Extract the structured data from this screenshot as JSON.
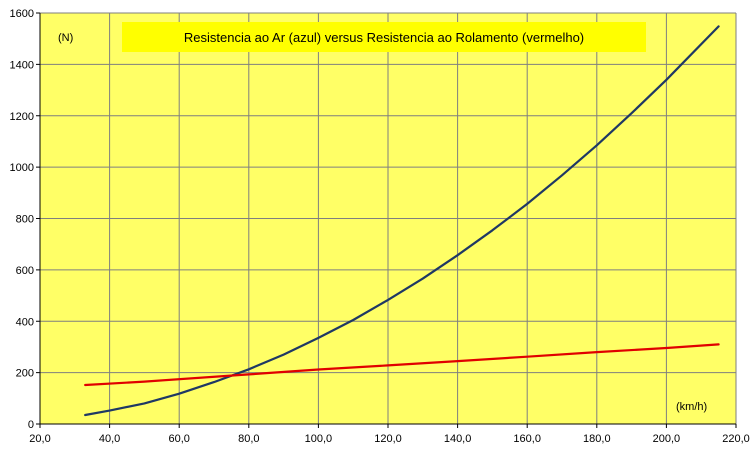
{
  "chart_data": {
    "type": "line",
    "title": "Resistencia ao Ar (azul)  versus  Resistencia ao Rolamento (vermelho)",
    "ylabel": "(N)",
    "xlabel": "(km/h)",
    "xlim": [
      20,
      220
    ],
    "ylim": [
      0,
      1600
    ],
    "x_ticks": [
      20,
      40,
      60,
      80,
      100,
      120,
      140,
      160,
      180,
      200,
      220
    ],
    "x_tick_labels": [
      "20,0",
      "40,0",
      "60,0",
      "80,0",
      "100,0",
      "120,0",
      "140,0",
      "160,0",
      "180,0",
      "200,0",
      "220,0"
    ],
    "y_ticks": [
      0,
      200,
      400,
      600,
      800,
      1000,
      1200,
      1400,
      1600
    ],
    "y_tick_labels": [
      "0",
      "200",
      "400",
      "600",
      "800",
      "1000",
      "1200",
      "1400",
      "1600"
    ],
    "grid": true,
    "colors": {
      "plot_background": "#FFFF66",
      "title_box": "#FFFF00",
      "grid": "#7f7f7f"
    },
    "series": [
      {
        "color": "#1F3864",
        "x": [
          33,
          40,
          50,
          60,
          70,
          80,
          90,
          100,
          110,
          120,
          130,
          140,
          150,
          160,
          170,
          180,
          190,
          200,
          215
        ],
        "y": [
          35,
          52,
          80,
          118,
          163,
          213,
          270,
          335,
          405,
          483,
          566,
          657,
          754,
          857,
          968,
          1085,
          1210,
          1340,
          1548
        ]
      },
      {
        "color": "#E00000",
        "x": [
          33,
          50,
          80,
          100,
          120,
          140,
          160,
          180,
          200,
          215
        ],
        "y": [
          152,
          165,
          193,
          212,
          228,
          245,
          262,
          280,
          296,
          310
        ]
      }
    ]
  }
}
